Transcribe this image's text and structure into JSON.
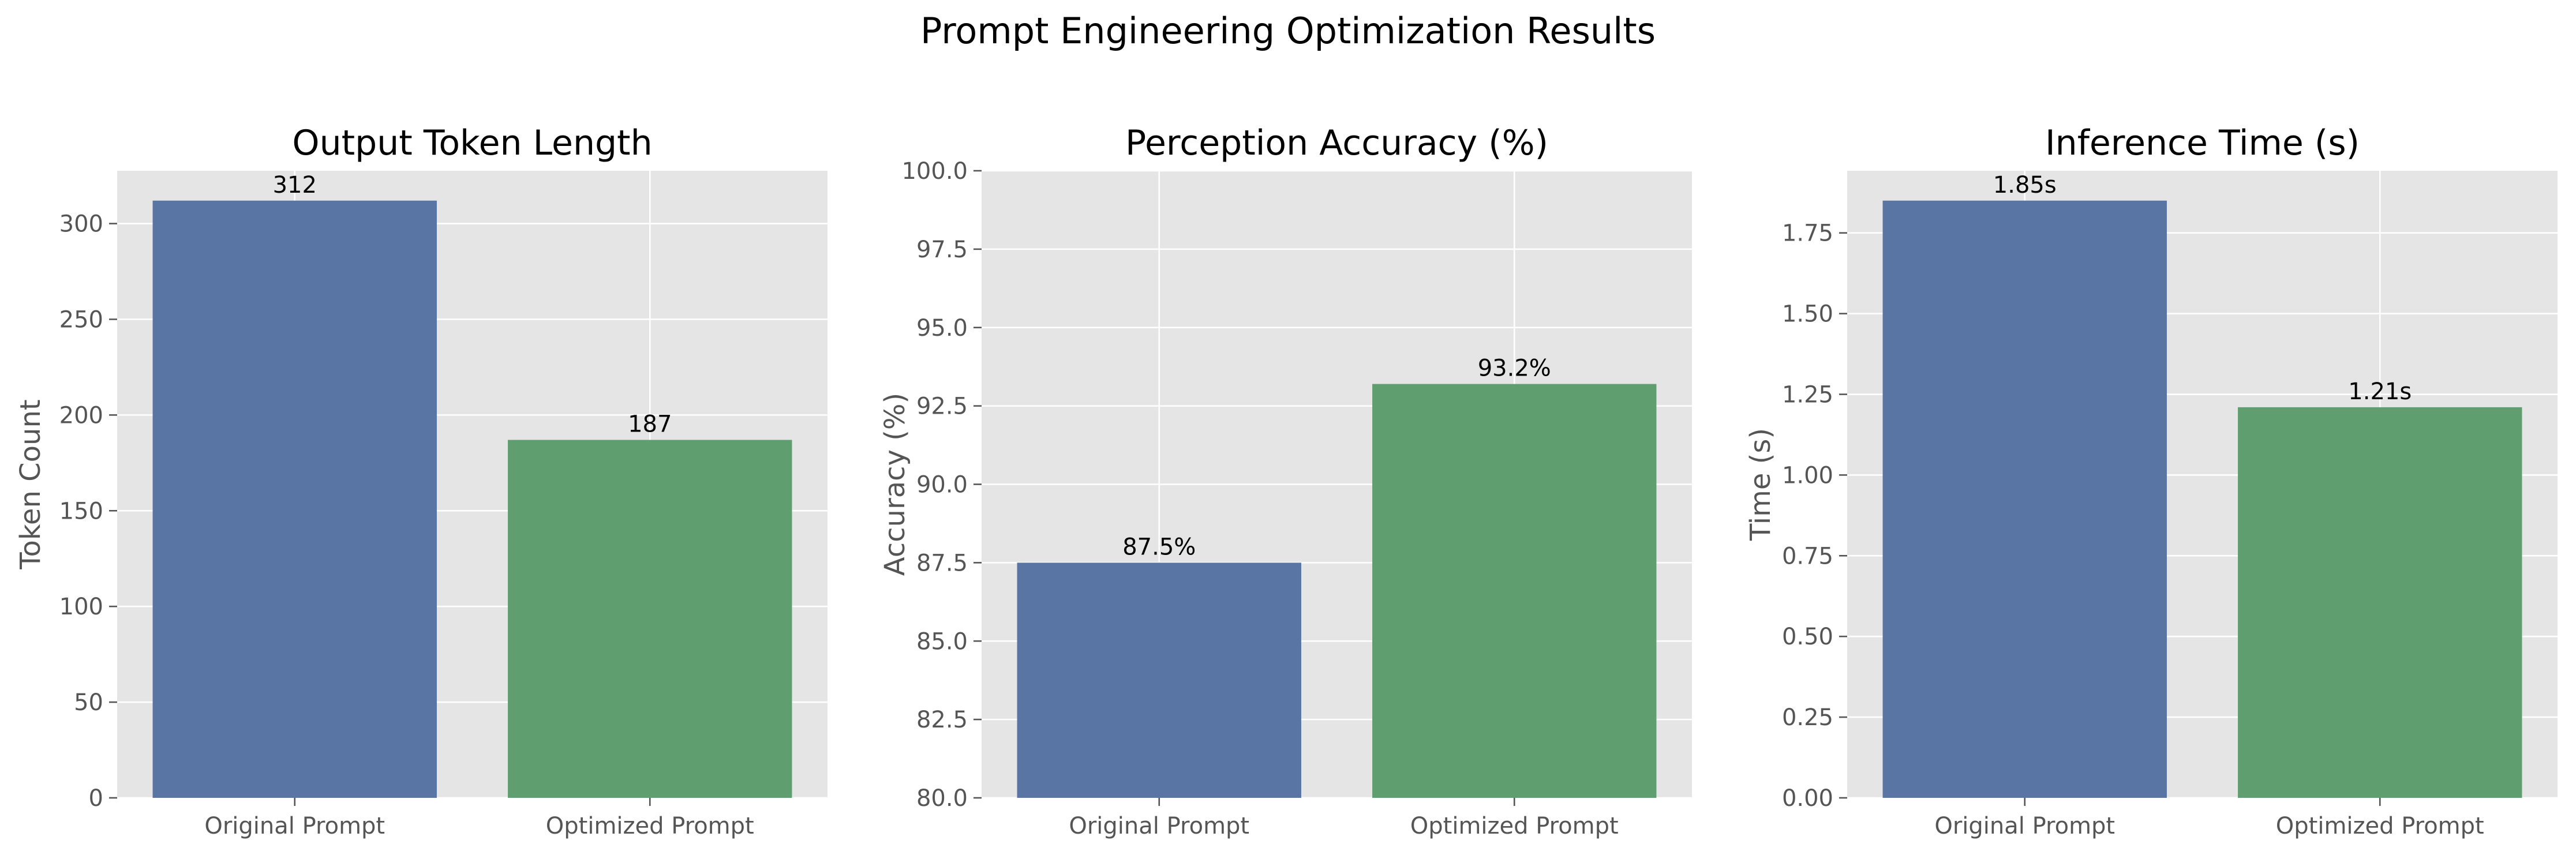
{
  "figure": {
    "title": "Prompt Engineering Optimization Results"
  },
  "colors": {
    "panel_bg": "#e5e5e5",
    "grid": "#ffffff",
    "original": "#5875a4",
    "optimized": "#5f9e6e",
    "tick_text": "#555555",
    "label_text": "#555555",
    "title_text": "#000000"
  },
  "chart_data": [
    {
      "type": "bar",
      "title": "Output Token Length",
      "xlabel": "",
      "ylabel": "Token Count",
      "categories": [
        "Original Prompt",
        "Optimized Prompt"
      ],
      "values": [
        312,
        187
      ],
      "data_labels": [
        "312",
        "187"
      ],
      "ylim": [
        0,
        327.6
      ],
      "yticks": [
        0,
        50,
        100,
        150,
        200,
        250,
        300
      ],
      "ytick_labels": [
        "0",
        "50",
        "100",
        "150",
        "200",
        "250",
        "300"
      ],
      "grid": true
    },
    {
      "type": "bar",
      "title": "Perception Accuracy (%)",
      "xlabel": "",
      "ylabel": "Accuracy (%)",
      "categories": [
        "Original Prompt",
        "Optimized Prompt"
      ],
      "values": [
        87.5,
        93.2
      ],
      "data_labels": [
        "87.5%",
        "93.2%"
      ],
      "ylim": [
        80,
        100
      ],
      "yticks": [
        80,
        82.5,
        85,
        87.5,
        90,
        92.5,
        95,
        97.5,
        100
      ],
      "ytick_labels": [
        "80.0",
        "82.5",
        "85.0",
        "87.5",
        "90.0",
        "92.5",
        "95.0",
        "97.5",
        "100.0"
      ],
      "grid": true
    },
    {
      "type": "bar",
      "title": "Inference Time (s)",
      "xlabel": "",
      "ylabel": "Time (s)",
      "categories": [
        "Original Prompt",
        "Optimized Prompt"
      ],
      "values": [
        1.85,
        1.21
      ],
      "data_labels": [
        "1.85s",
        "1.21s"
      ],
      "ylim": [
        0,
        1.9425
      ],
      "yticks": [
        0,
        0.25,
        0.5,
        0.75,
        1.0,
        1.25,
        1.5,
        1.75
      ],
      "ytick_labels": [
        "0.00",
        "0.25",
        "0.50",
        "0.75",
        "1.00",
        "1.25",
        "1.50",
        "1.75"
      ],
      "grid": true
    }
  ]
}
